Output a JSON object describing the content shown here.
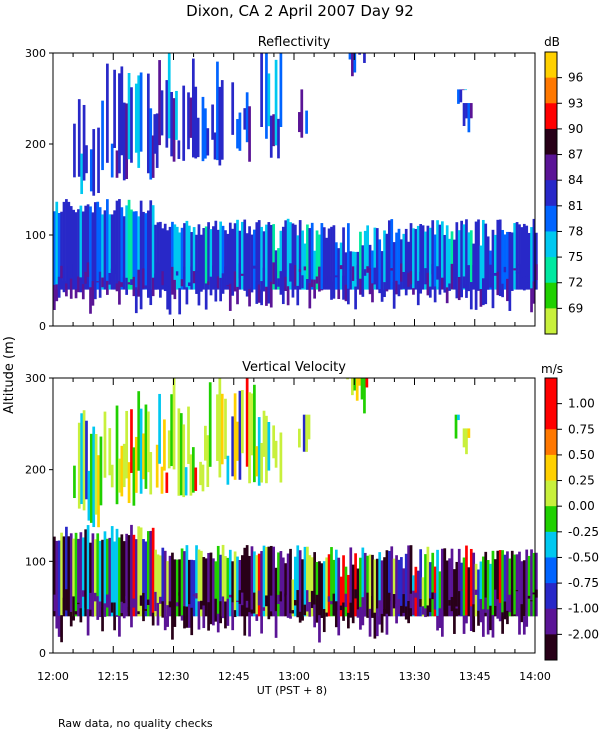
{
  "title": "Dixon, CA   2 April 2007   Day   92",
  "ylabel": "Altitude  (m)",
  "xlabel": "UT   (PST + 8)",
  "footnote": "Raw data, no quality checks",
  "chart_data": [
    {
      "type": "heatmap",
      "title": "Reflectivity",
      "units": "dB",
      "ylim": [
        0,
        300
      ],
      "yticks": [
        "0",
        "100",
        "200",
        "300"
      ],
      "colorbar": [
        "96",
        "93",
        "90",
        "87",
        "84",
        "81",
        "78",
        "75",
        "72",
        "69"
      ],
      "colors": [
        "#c8f03c",
        "#20d000",
        "#00e8a0",
        "#00c8f0",
        "#0064ff",
        "#2828c8",
        "#5a1496",
        "#280018",
        "#ff0000",
        "#ff7800",
        "#ffd000"
      ],
      "ground_layer": {
        "from": 40,
        "to": 100,
        "dominant": "#2828c8"
      },
      "features": [
        {
          "region": "low-level echoes",
          "altitude_m": [
            40,
            120
          ],
          "mean_dBZ": 80
        },
        {
          "region": "elevated echoes",
          "altitude_m": [
            150,
            300
          ],
          "mean_dBZ": 83
        }
      ]
    },
    {
      "type": "heatmap",
      "title": "Vertical Velocity",
      "units": "m/s",
      "ylim": [
        0,
        300
      ],
      "yticks": [
        "0",
        "100",
        "200",
        "300"
      ],
      "colorbar": [
        "1.00",
        "0.75",
        "0.50",
        "0.25",
        "0.00",
        "-0.25",
        "-0.50",
        "-0.75",
        "-1.00",
        "-2.00"
      ],
      "colors": [
        "#280018",
        "#5a1496",
        "#2828c8",
        "#0064ff",
        "#00c8f0",
        "#20d000",
        "#c8f03c",
        "#ffd000",
        "#ff7800",
        "#ff0000",
        "#ff0000"
      ],
      "features": [
        {
          "region": "low-level",
          "altitude_m": [
            40,
            120
          ],
          "mean_ms": -0.5
        },
        {
          "region": "elevated",
          "altitude_m": [
            150,
            300
          ],
          "mean_ms": 0.25
        }
      ]
    }
  ],
  "xticks": [
    "12:00",
    "12:15",
    "12:30",
    "12:45",
    "13:00",
    "13:15",
    "13:30",
    "13:45",
    "14:00"
  ]
}
